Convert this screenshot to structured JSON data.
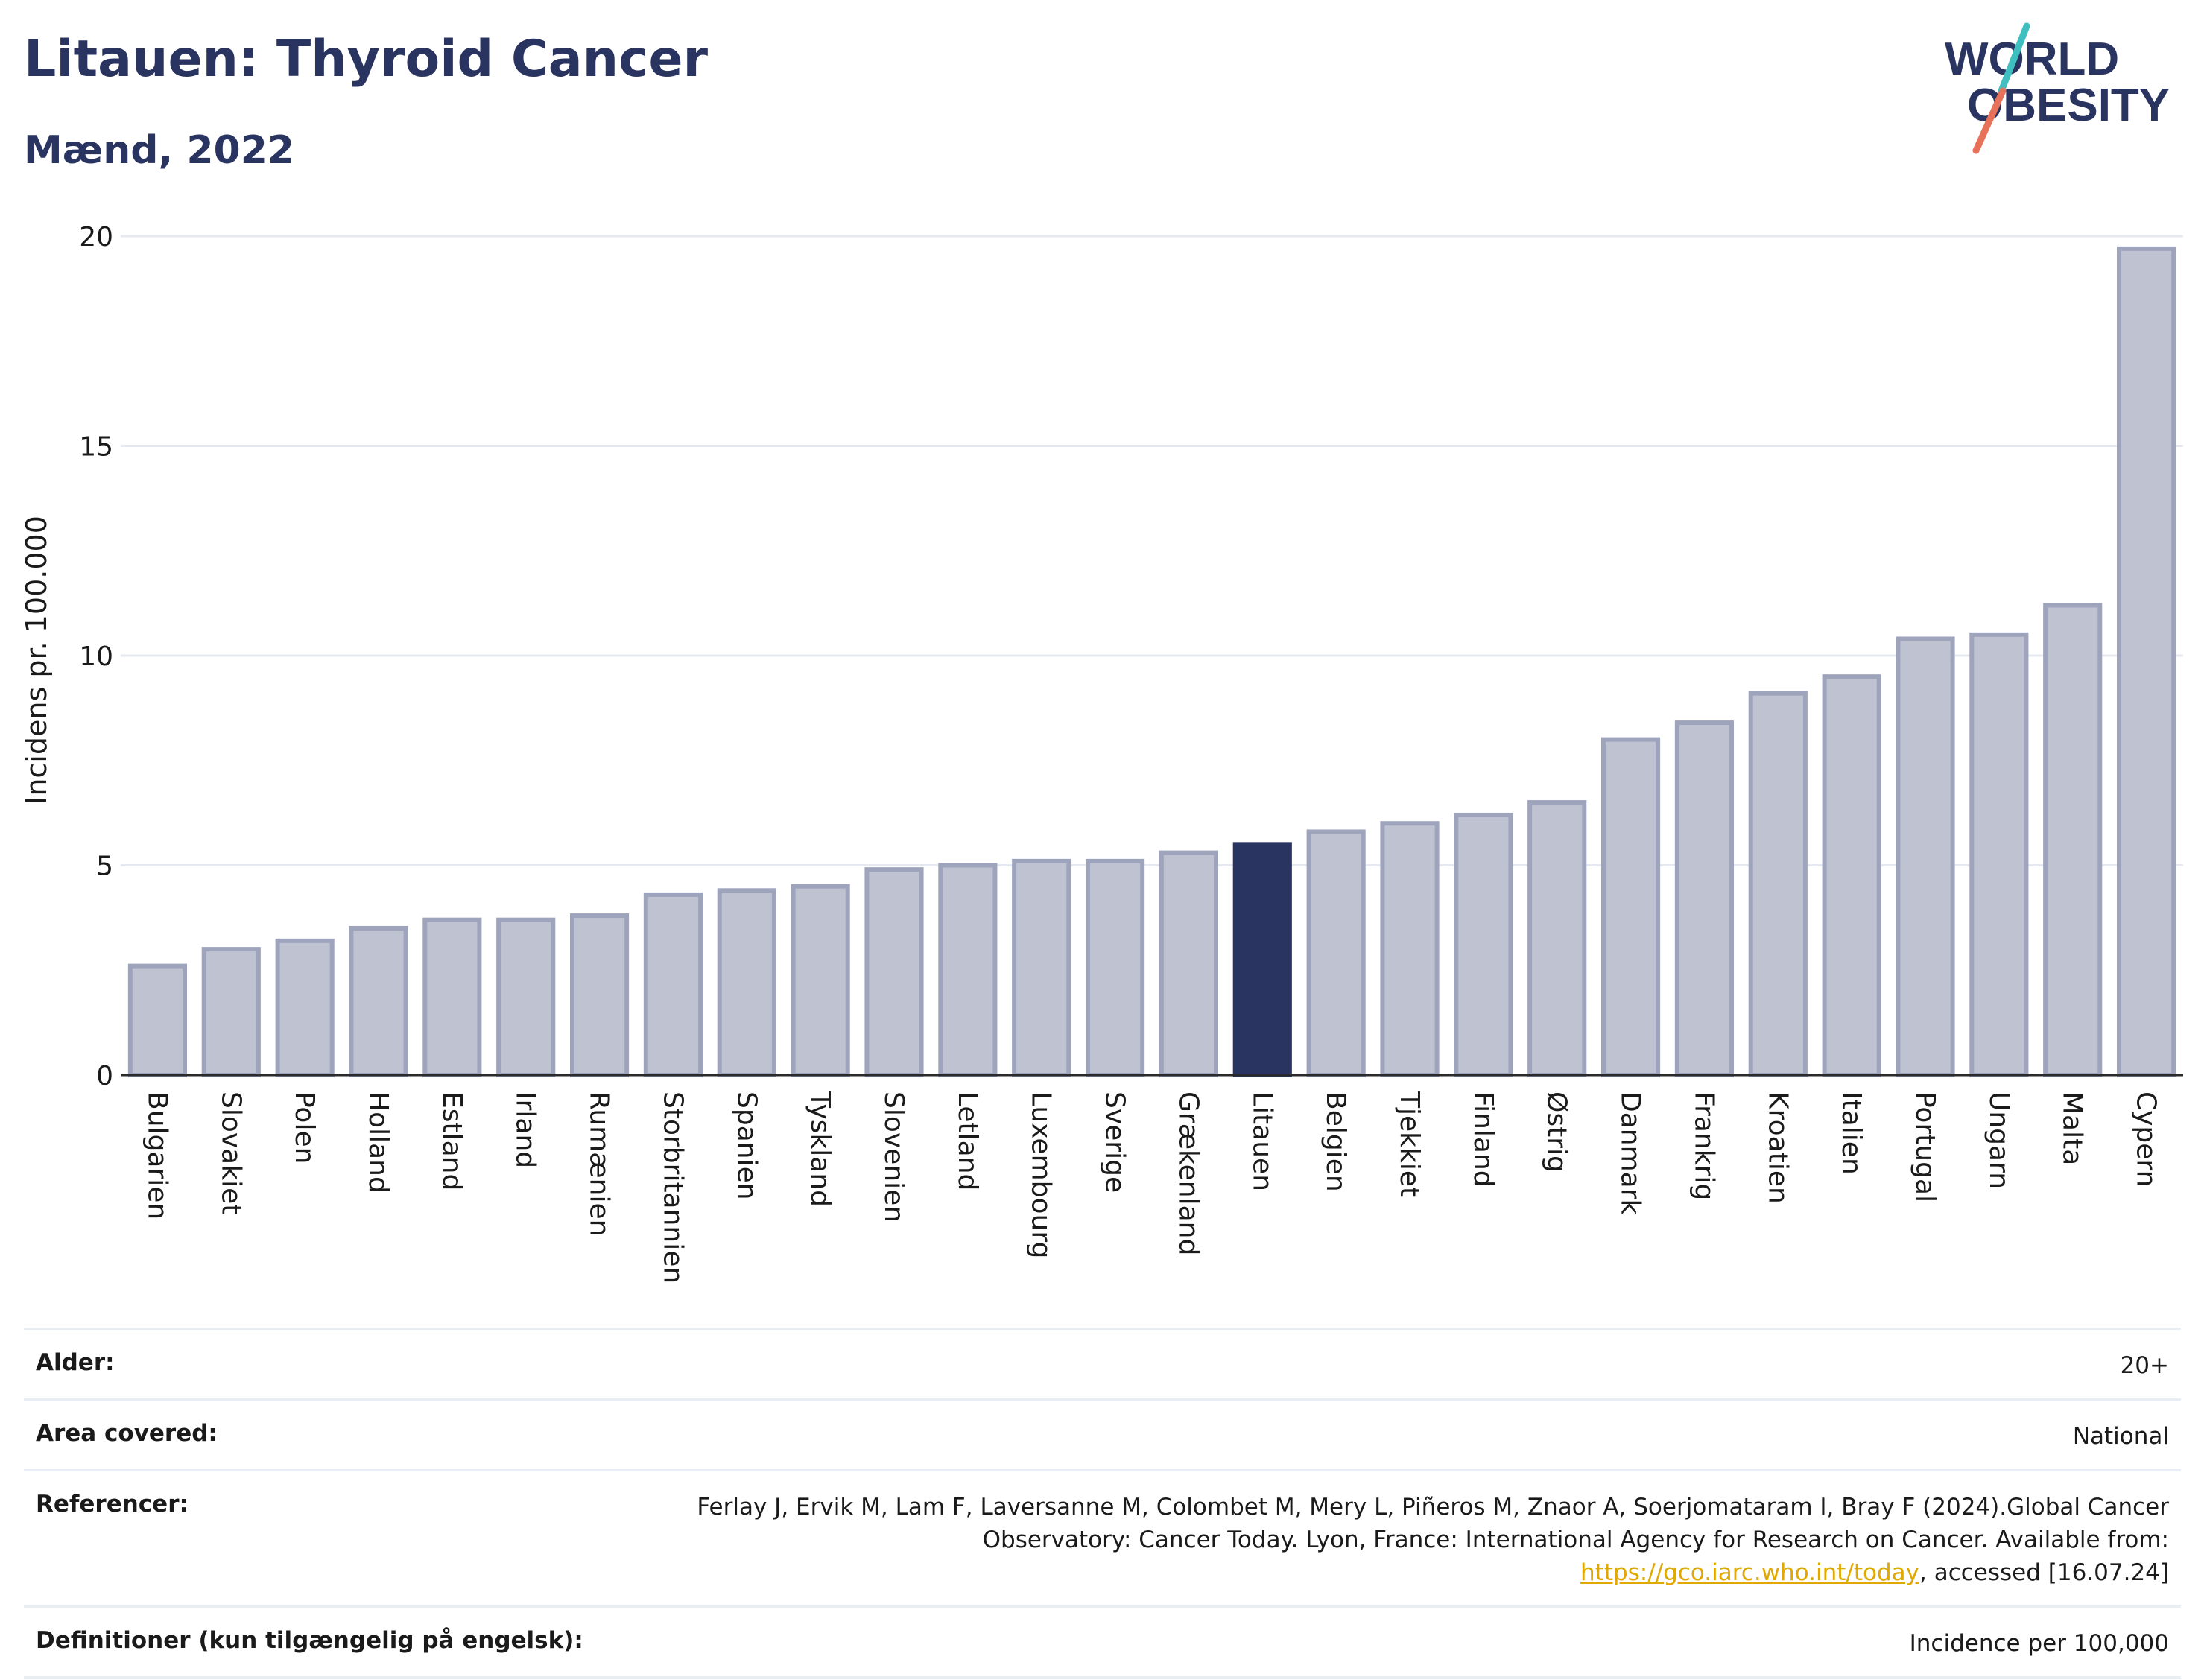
{
  "header": {
    "title": "Litauen: Thyroid Cancer",
    "subtitle": "Mænd, 2022"
  },
  "logo": {
    "line1": "WORLD",
    "line2": "OBESITY",
    "accent_colors": [
      "#3fbfbf",
      "#e8715a"
    ]
  },
  "colors": {
    "bar_default": "#bfc2d0",
    "bar_default_stroke": "#9fa4bd",
    "bar_highlight": "#2a3460",
    "text_dark": "#2a3460",
    "link": "#e0a800"
  },
  "chart_data": {
    "type": "bar",
    "title": "Litauen: Thyroid Cancer",
    "subtitle": "Mænd, 2022",
    "xlabel": "",
    "ylabel": "Incidens pr. 100.000",
    "ylim": [
      0,
      20
    ],
    "yticks": [
      0,
      5,
      10,
      15,
      20
    ],
    "grid": true,
    "highlight": "Litauen",
    "categories": [
      "Bulgarien",
      "Slovakiet",
      "Polen",
      "Holland",
      "Estland",
      "Irland",
      "Rumænien",
      "Storbritannien",
      "Spanien",
      "Tyskland",
      "Slovenien",
      "Letland",
      "Luxembourg",
      "Sverige",
      "Grækenland",
      "Litauen",
      "Belgien",
      "Tjekkiet",
      "Finland",
      "Østrig",
      "Danmark",
      "Frankrig",
      "Kroatien",
      "Italien",
      "Portugal",
      "Ungarn",
      "Malta",
      "Cypern"
    ],
    "values": [
      2.6,
      3.0,
      3.2,
      3.5,
      3.7,
      3.7,
      3.8,
      4.3,
      4.4,
      4.5,
      4.9,
      5.0,
      5.1,
      5.1,
      5.3,
      5.5,
      5.8,
      6.0,
      6.2,
      6.5,
      8.0,
      8.4,
      9.1,
      9.5,
      10.4,
      10.5,
      11.2,
      19.7
    ]
  },
  "meta": {
    "age_label": "Alder:",
    "age_value": "20+",
    "area_label": "Area covered:",
    "area_value": "National",
    "ref_label": "Referencer:",
    "ref_text_1": "Ferlay J, Ervik M, Lam F, Laversanne M, Colombet M, Mery L, Piñeros M, Znaor A, Soerjomataram I, Bray F (2024).Global Cancer Observatory: Cancer Today. Lyon, France: International Agency for Research on Cancer. Available from: ",
    "ref_link": "https://gco.iarc.who.int/today",
    "ref_text_2": ", accessed [16.07.24]",
    "def_label": "Definitioner (kun tilgængelig på engelsk):",
    "def_value": "Incidence per 100,000"
  }
}
